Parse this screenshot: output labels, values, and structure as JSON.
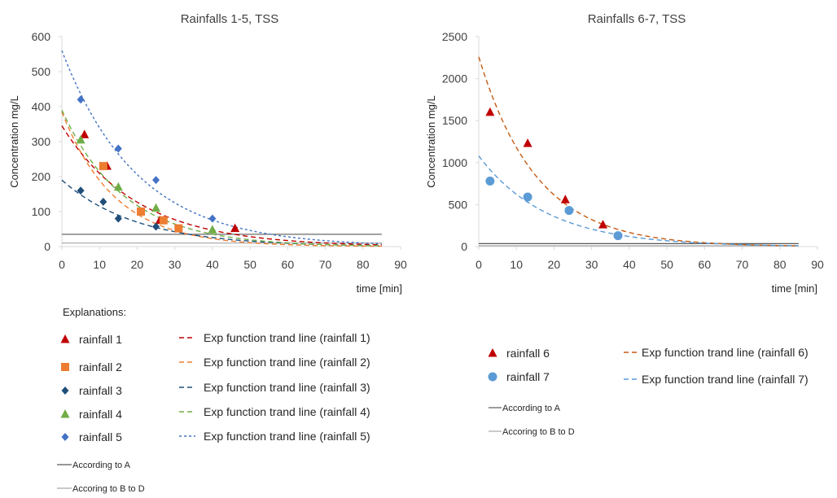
{
  "colors": {
    "r1": "#C00000",
    "r2": "#ED7D31",
    "r3": "#1F4E79",
    "r4": "#70AD47",
    "r5": "#4472C4",
    "r6": "#C00000",
    "r7": "#5B9BD5",
    "t6": "#C55A11",
    "t7": "#5B9BD5",
    "limitA": "#595959",
    "limitB": "#A6A6A6",
    "axis": "#D9D9D9"
  },
  "explanations_label": "Explanations:",
  "chart_data": [
    {
      "type": "scatter",
      "title": "Rainfalls 1-5, TSS",
      "xlabel": "time [min]",
      "ylabel": "Concentration mg/L",
      "xlim": [
        0,
        90
      ],
      "ylim": [
        0,
        600
      ],
      "xticks": [
        0,
        10,
        20,
        30,
        40,
        50,
        60,
        70,
        80,
        90
      ],
      "yticks": [
        0,
        100,
        200,
        300,
        400,
        500,
        600
      ],
      "series": [
        {
          "key": "r1",
          "name": "rainfall 1",
          "marker": "triangle",
          "x": [
            6,
            12,
            26,
            46
          ],
          "y": [
            320,
            230,
            75,
            52
          ]
        },
        {
          "key": "r2",
          "name": "rainfall 2",
          "marker": "square",
          "x": [
            11,
            21,
            27,
            31
          ],
          "y": [
            230,
            100,
            75,
            52
          ]
        },
        {
          "key": "r3",
          "name": "rainfall 3",
          "marker": "diamond",
          "x": [
            5,
            11,
            15,
            25
          ],
          "y": [
            160,
            128,
            80,
            57
          ]
        },
        {
          "key": "r4",
          "name": "rainfall 4",
          "marker": "triangle",
          "x": [
            5,
            15,
            25,
            40
          ],
          "y": [
            305,
            170,
            110,
            48
          ]
        },
        {
          "key": "r5",
          "name": "rainfall 5",
          "marker": "diamond",
          "x": [
            5,
            15,
            25,
            40
          ],
          "y": [
            420,
            280,
            190,
            80
          ]
        }
      ],
      "trendlines": [
        {
          "key": "r1",
          "name": "Exp function trand line (rainfall 1)",
          "a": 345,
          "b": 0.05,
          "xmax": 85
        },
        {
          "key": "r2",
          "name": "Exp function trand line (rainfall 2)",
          "a": 385,
          "b": 0.071,
          "xmax": 85
        },
        {
          "key": "r3",
          "name": "Exp function trand line (rainfall 3)",
          "a": 190,
          "b": 0.05,
          "xmax": 85
        },
        {
          "key": "r4",
          "name": "Exp function trand line (rainfall 4)",
          "a": 390,
          "b": 0.06,
          "xmax": 85
        },
        {
          "key": "r5",
          "name": "Exp function trand line (rainfall 5)",
          "a": 560,
          "b": 0.05,
          "xmax": 85
        }
      ],
      "limits": [
        {
          "key": "limitA",
          "name": "According to A",
          "y": 35,
          "xmax": 85
        },
        {
          "key": "limitB",
          "name": "Accoring to B to D",
          "y": 10,
          "xmax": 85
        }
      ]
    },
    {
      "type": "scatter",
      "title": "Rainfalls 6-7, TSS",
      "xlabel": "time [min]",
      "ylabel": "Concentration mg/L",
      "xlim": [
        0,
        90
      ],
      "ylim": [
        0,
        2500
      ],
      "xticks": [
        0,
        10,
        20,
        30,
        40,
        50,
        60,
        70,
        80,
        90
      ],
      "yticks": [
        0,
        500,
        1000,
        1500,
        2000,
        2500
      ],
      "series": [
        {
          "key": "r6",
          "name": "rainfall 6",
          "marker": "triangle",
          "x": [
            3,
            13,
            23,
            33
          ],
          "y": [
            1600,
            1230,
            560,
            260
          ]
        },
        {
          "key": "r7",
          "name": "rainfall 7",
          "marker": "circle",
          "x": [
            3,
            13,
            24,
            37
          ],
          "y": [
            780,
            590,
            430,
            130
          ]
        }
      ],
      "trendlines": [
        {
          "key": "t6",
          "name": "Exp function trand line (rainfall 6)",
          "a": 2260,
          "b": 0.065,
          "xmax": 85
        },
        {
          "key": "t7",
          "name": "Exp function trand line (rainfall 7)",
          "a": 1080,
          "b": 0.055,
          "xmax": 85
        }
      ],
      "limits": [
        {
          "key": "limitA",
          "name": "According to A",
          "y": 35,
          "xmax": 85
        },
        {
          "key": "limitB",
          "name": "Accoring to B to D",
          "y": 10,
          "xmax": 85
        }
      ]
    }
  ]
}
